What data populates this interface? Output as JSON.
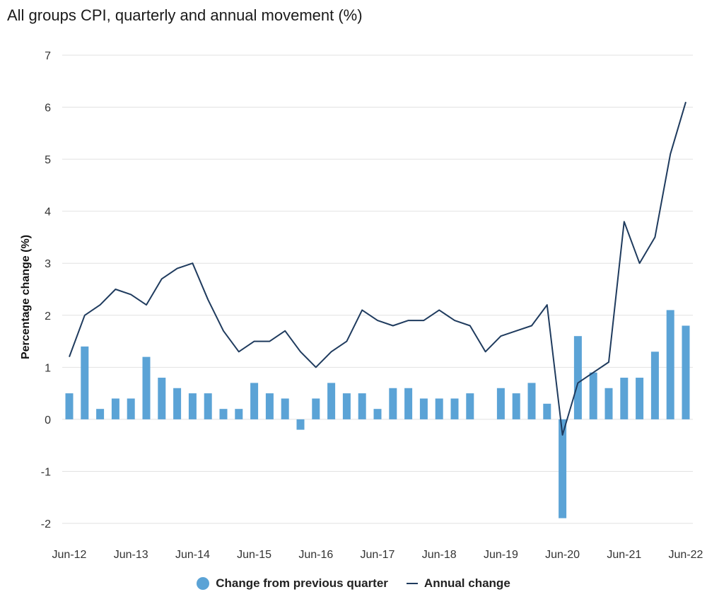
{
  "chart_data": {
    "type": "bar+line",
    "title": "All groups CPI, quarterly and annual movement (%)",
    "ylabel": "Percentage change (%)",
    "xlabel": "",
    "ylim": [
      -2,
      7
    ],
    "yticks": [
      -2,
      -1,
      0,
      1,
      2,
      3,
      4,
      5,
      6,
      7
    ],
    "xtick_labels": [
      "Jun-12",
      "Jun-13",
      "Jun-14",
      "Jun-15",
      "Jun-16",
      "Jun-17",
      "Jun-18",
      "Jun-19",
      "Jun-20",
      "Jun-21",
      "Jun-22"
    ],
    "colors": {
      "bar": "#5ba3d6",
      "line": "#1f3b5e",
      "grid": "#e2e2e2"
    },
    "series": [
      {
        "name": "Change from previous quarter",
        "type": "bar",
        "values": [
          0.5,
          1.4,
          0.2,
          0.4,
          0.4,
          1.2,
          0.8,
          0.6,
          0.5,
          0.5,
          0.2,
          0.2,
          0.7,
          0.5,
          0.4,
          -0.2,
          0.4,
          0.7,
          0.5,
          0.5,
          0.2,
          0.6,
          0.6,
          0.4,
          0.4,
          0.4,
          0.5,
          0.0,
          0.6,
          0.5,
          0.7,
          0.3,
          -1.9,
          1.6,
          0.9,
          0.6,
          0.8,
          0.8,
          1.3,
          2.1,
          1.8
        ]
      },
      {
        "name": "Annual change",
        "type": "line",
        "values": [
          1.2,
          2.0,
          2.2,
          2.5,
          2.4,
          2.2,
          2.7,
          2.9,
          3.0,
          2.3,
          1.7,
          1.3,
          1.5,
          1.5,
          1.7,
          1.3,
          1.0,
          1.3,
          1.5,
          2.1,
          1.9,
          1.8,
          1.9,
          1.9,
          2.1,
          1.9,
          1.8,
          1.3,
          1.6,
          1.7,
          1.8,
          2.2,
          -0.3,
          0.7,
          0.9,
          1.1,
          3.8,
          3.0,
          3.5,
          5.1,
          6.1
        ]
      }
    ],
    "legend": {
      "position": "bottom-center"
    }
  }
}
